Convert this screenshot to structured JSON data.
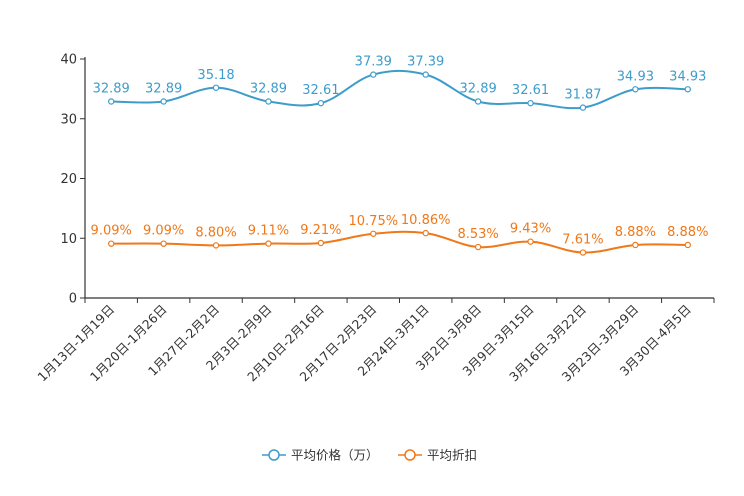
{
  "chart_data": {
    "type": "line",
    "title": "",
    "xlabel": "",
    "ylabel": "",
    "ylim": [
      0,
      40
    ],
    "yticks": [
      "0",
      "10",
      "20",
      "30",
      "40"
    ],
    "categories": [
      "1月13日-1月19日",
      "1月20日-1月26日",
      "1月27日-2月2日",
      "2月3日-2月9日",
      "2月10日-2月16日",
      "2月17日-2月23日",
      "2月24日-3月1日",
      "3月2日-3月8日",
      "3月9日-3月15日",
      "3月16日-3月22日",
      "3月23日-3月29日",
      "3月30日-4月5日"
    ],
    "series": [
      {
        "name": "平均价格（万）",
        "color": "#3e9ccb",
        "values": [
          32.89,
          32.89,
          35.18,
          32.89,
          32.61,
          37.39,
          37.39,
          32.89,
          32.61,
          31.87,
          34.93,
          34.93
        ],
        "labels": [
          "32.89",
          "32.89",
          "35.18",
          "32.89",
          "32.61",
          "37.39",
          "37.39",
          "32.89",
          "32.61",
          "31.87",
          "34.93",
          "34.93"
        ]
      },
      {
        "name": "平均折扣",
        "color": "#f07818",
        "values": [
          9.09,
          9.09,
          8.8,
          9.11,
          9.21,
          10.75,
          10.86,
          8.53,
          9.43,
          7.61,
          8.88,
          8.88
        ],
        "labels": [
          "9.09%",
          "9.09%",
          "8.80%",
          "9.11%",
          "9.21%",
          "10.75%",
          "10.86%",
          "8.53%",
          "9.43%",
          "7.61%",
          "8.88%",
          "8.88%"
        ]
      }
    ],
    "legend": "bottom-center",
    "grid": false
  }
}
